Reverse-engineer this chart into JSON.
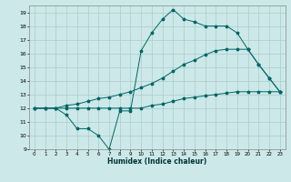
{
  "xlabel": "Humidex (Indice chaleur)",
  "background_color": "#cce8e8",
  "grid_color": "#aacccc",
  "line_color": "#006666",
  "xlim": [
    -0.5,
    23.5
  ],
  "ylim": [
    9,
    19.5
  ],
  "yticks": [
    9,
    10,
    11,
    12,
    13,
    14,
    15,
    16,
    17,
    18,
    19
  ],
  "xticks": [
    0,
    1,
    2,
    3,
    4,
    5,
    6,
    7,
    8,
    9,
    10,
    11,
    12,
    13,
    14,
    15,
    16,
    17,
    18,
    19,
    20,
    21,
    22,
    23
  ],
  "line1_x": [
    0,
    1,
    2,
    3,
    4,
    5,
    6,
    7,
    8,
    9,
    10,
    11,
    12,
    13,
    14,
    15,
    16,
    17,
    18,
    19,
    20,
    21,
    22,
    23
  ],
  "line1_y": [
    12.0,
    12.0,
    12.0,
    11.5,
    10.5,
    10.5,
    10.0,
    9.0,
    11.8,
    11.8,
    16.2,
    17.5,
    18.5,
    19.2,
    18.5,
    18.3,
    18.0,
    18.0,
    18.0,
    17.5,
    16.3,
    15.2,
    14.2,
    13.2
  ],
  "line2_x": [
    0,
    1,
    2,
    3,
    4,
    5,
    6,
    7,
    8,
    9,
    10,
    11,
    12,
    13,
    14,
    15,
    16,
    17,
    18,
    19,
    20,
    21,
    22,
    23
  ],
  "line2_y": [
    12.0,
    12.0,
    12.0,
    12.2,
    12.3,
    12.5,
    12.7,
    12.8,
    13.0,
    13.2,
    13.5,
    13.8,
    14.2,
    14.7,
    15.2,
    15.5,
    15.9,
    16.2,
    16.3,
    16.3,
    16.3,
    15.2,
    14.2,
    13.2
  ],
  "line3_x": [
    0,
    1,
    2,
    3,
    4,
    5,
    6,
    7,
    8,
    9,
    10,
    11,
    12,
    13,
    14,
    15,
    16,
    17,
    18,
    19,
    20,
    21,
    22,
    23
  ],
  "line3_y": [
    12.0,
    12.0,
    12.0,
    12.0,
    12.0,
    12.0,
    12.0,
    12.0,
    12.0,
    12.0,
    12.0,
    12.2,
    12.3,
    12.5,
    12.7,
    12.8,
    12.9,
    13.0,
    13.1,
    13.2,
    13.2,
    13.2,
    13.2,
    13.2
  ]
}
